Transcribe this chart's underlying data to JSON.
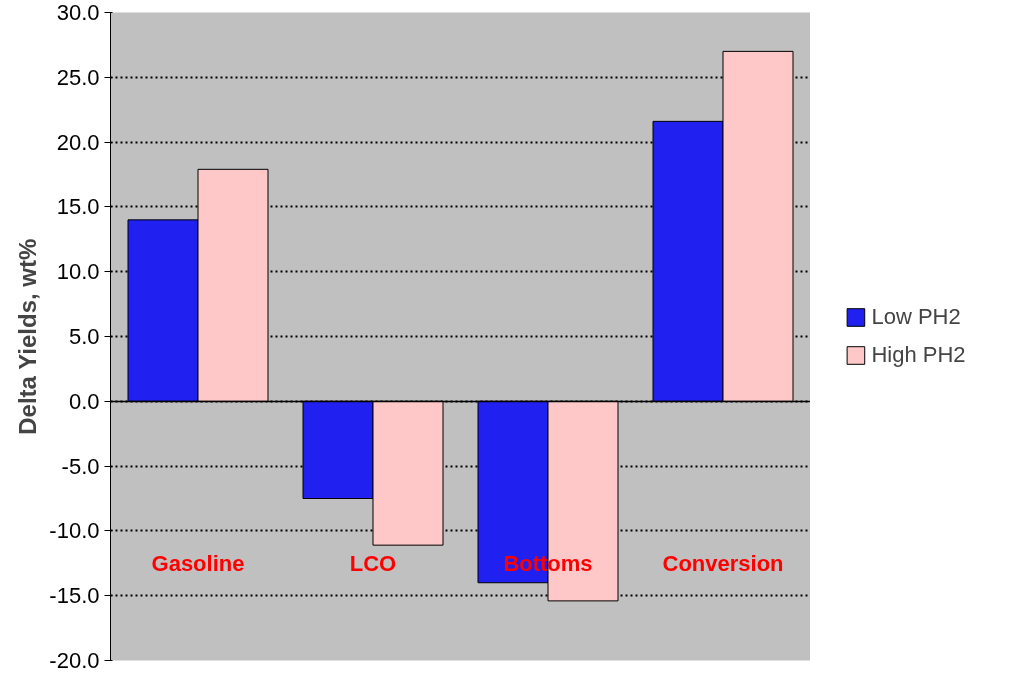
{
  "chart_data": {
    "type": "bar",
    "ylabel": "Delta Yields, wt%",
    "categories": [
      "Gasoline",
      "LCO",
      "Bottoms",
      "Conversion"
    ],
    "series": [
      {
        "name": "Low PH2",
        "color": "#2020f0",
        "values": [
          14.0,
          -7.5,
          -14.0,
          21.6
        ]
      },
      {
        "name": "High PH2",
        "color": "#ffc8c8",
        "values": [
          17.9,
          -11.1,
          -15.4,
          27.0
        ]
      }
    ],
    "ylim": [
      -20,
      30
    ],
    "yticks": [
      {
        "value": -20,
        "label": "-20.0"
      },
      {
        "value": -15,
        "label": "-15.0"
      },
      {
        "value": -10,
        "label": "-10.0"
      },
      {
        "value": -5,
        "label": "-5.0"
      },
      {
        "value": 0,
        "label": "0.0"
      },
      {
        "value": 5,
        "label": "5.0"
      },
      {
        "value": 10,
        "label": "10.0"
      },
      {
        "value": 15,
        "label": "15.0"
      },
      {
        "value": 20,
        "label": "20.0"
      },
      {
        "value": 25,
        "label": "25.0"
      },
      {
        "value": 30,
        "label": "30.0"
      }
    ],
    "grid": "y",
    "legend": "right"
  }
}
